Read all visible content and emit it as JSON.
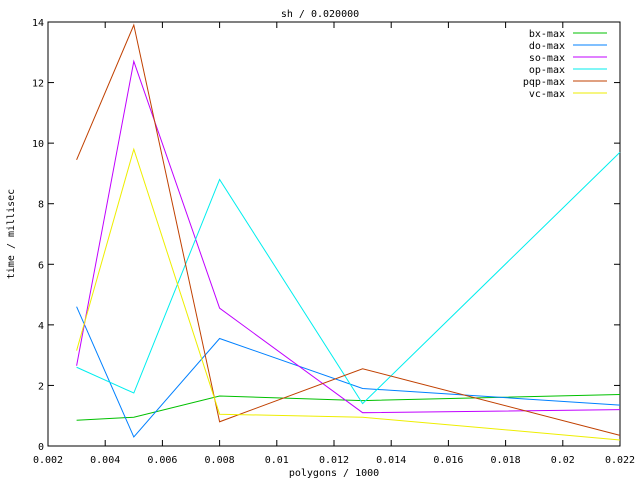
{
  "chart_data": {
    "type": "line",
    "title": "sh / 0.020000",
    "xlabel": "polygons / 1000",
    "ylabel": "time / millisec",
    "xlim": [
      0.002,
      0.022
    ],
    "ylim": [
      0,
      14
    ],
    "xticks": [
      "0.002",
      "0.004",
      "0.006",
      "0.008",
      "0.01",
      "0.012",
      "0.014",
      "0.016",
      "0.018",
      "0.02",
      "0.022"
    ],
    "yticks": [
      "0",
      "2",
      "4",
      "6",
      "8",
      "10",
      "12",
      "14"
    ],
    "grid": false,
    "legend_position": "top-right",
    "x": [
      0.003,
      0.005,
      0.008,
      0.013,
      0.022
    ],
    "series": [
      {
        "name": "bx-max",
        "color": "#00c000",
        "values": [
          0.85,
          0.95,
          1.65,
          1.5,
          1.7
        ]
      },
      {
        "name": "do-max",
        "color": "#0080ff",
        "values": [
          4.6,
          0.3,
          3.55,
          1.9,
          1.35
        ]
      },
      {
        "name": "so-max",
        "color": "#c000ff",
        "values": [
          2.65,
          12.7,
          4.55,
          1.1,
          1.2
        ]
      },
      {
        "name": "op-max",
        "color": "#00eeee",
        "values": [
          2.6,
          1.75,
          8.8,
          1.4,
          9.7
        ]
      },
      {
        "name": "pqp-max",
        "color": "#c04000",
        "values": [
          9.45,
          13.9,
          0.8,
          2.55,
          0.35
        ]
      },
      {
        "name": "vc-max",
        "color": "#eeee00",
        "values": [
          3.15,
          9.8,
          1.05,
          0.95,
          0.2
        ]
      }
    ]
  }
}
